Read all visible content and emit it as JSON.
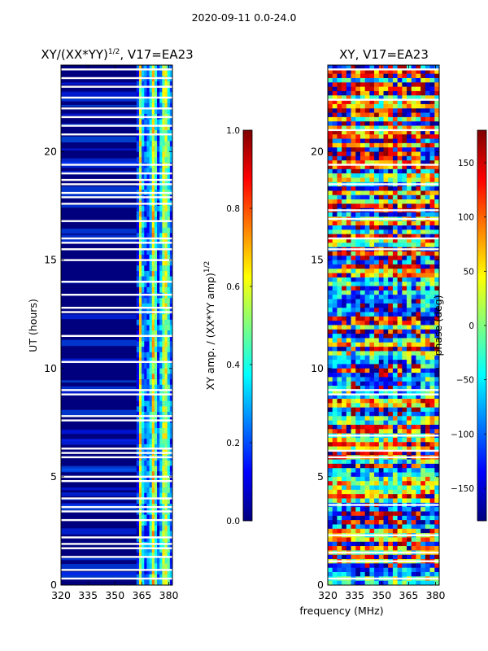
{
  "suptitle": "2020-09-11 0.0-24.0",
  "shared": {
    "xlabel": "frequency (MHz)",
    "ylabel": "UT (hours)"
  },
  "colors": {
    "background": "#00007f",
    "gap": "#ffffff",
    "frame": "#000000",
    "jet": [
      "#00007f",
      "#0000ff",
      "#007fff",
      "#00ffff",
      "#7fff7f",
      "#ffff00",
      "#ff7f00",
      "#ff0000",
      "#7f0000"
    ]
  },
  "chart_data": [
    {
      "type": "heatmap",
      "title_main": "XY/(XX*YY)",
      "title_sup": "1/2",
      "title_tail": ", V17=EA23",
      "x_range": [
        320,
        382
      ],
      "y_range": [
        0,
        24
      ],
      "x_ticks": [
        320,
        335,
        350,
        365,
        380
      ],
      "y_ticks": [
        0,
        5,
        10,
        15,
        20
      ],
      "y_tick_labels": [
        "0",
        "5",
        "10",
        "15",
        "20"
      ],
      "colorbar": {
        "label_main": "XY amp. / (XX*YY amp)",
        "label_sup": "1/2",
        "range": [
          0.0,
          1.0
        ],
        "ticks": [
          0.0,
          0.2,
          0.4,
          0.6,
          0.8,
          1.0
        ],
        "tick_labels": [
          "0.0",
          "0.2",
          "0.4",
          "0.6",
          "0.8",
          "1.0"
        ]
      },
      "low_band_mhz": [
        320,
        362
      ],
      "low_band_value": 0.05,
      "high_band_mhz": [
        362,
        382
      ],
      "high_band_value_range": [
        0.15,
        0.65
      ],
      "flagged_ut_hours": [
        0.3,
        0.7,
        1.3,
        1.7,
        1.9,
        2.2,
        3.0,
        3.4,
        3.6,
        4.0,
        4.8,
        5.0,
        5.9,
        6.1,
        6.3,
        7.6,
        7.8,
        8.8,
        9.0,
        10.3,
        11.5,
        12.6,
        12.8,
        13.4,
        14.0,
        15.0,
        15.5,
        15.8,
        16.0,
        16.8,
        17.6,
        17.9,
        18.1,
        18.5,
        18.7,
        19.0,
        19.4,
        20.8,
        21.2,
        21.6,
        22.0,
        22.5,
        23.0,
        23.4,
        23.8
      ]
    },
    {
      "type": "heatmap",
      "title_main": "XY, V17=EA23",
      "x_range": [
        320,
        382
      ],
      "y_range": [
        0,
        24
      ],
      "x_ticks": [
        320,
        335,
        350,
        365,
        380
      ],
      "y_ticks": [
        0,
        5,
        10,
        15,
        20
      ],
      "y_tick_labels": [
        "0",
        "5",
        "10",
        "15",
        "20"
      ],
      "colorbar": {
        "label": "phase (deg)",
        "range": [
          -180,
          180
        ],
        "ticks": [
          -150,
          -100,
          -50,
          0,
          50,
          100,
          150
        ],
        "tick_labels": [
          "−150",
          "−100",
          "−50",
          "0",
          "50",
          "100",
          "150"
        ]
      },
      "value_range_deg": [
        -180,
        180
      ],
      "flagged_ut_hours": [
        0.3,
        1.1,
        1.5,
        2.3,
        3.7,
        5.9,
        6.2,
        6.9,
        8.8,
        9.0,
        15.5,
        16.0,
        16.9,
        17.3,
        18.5,
        19.4,
        21.0,
        22.4,
        23.8
      ]
    }
  ]
}
